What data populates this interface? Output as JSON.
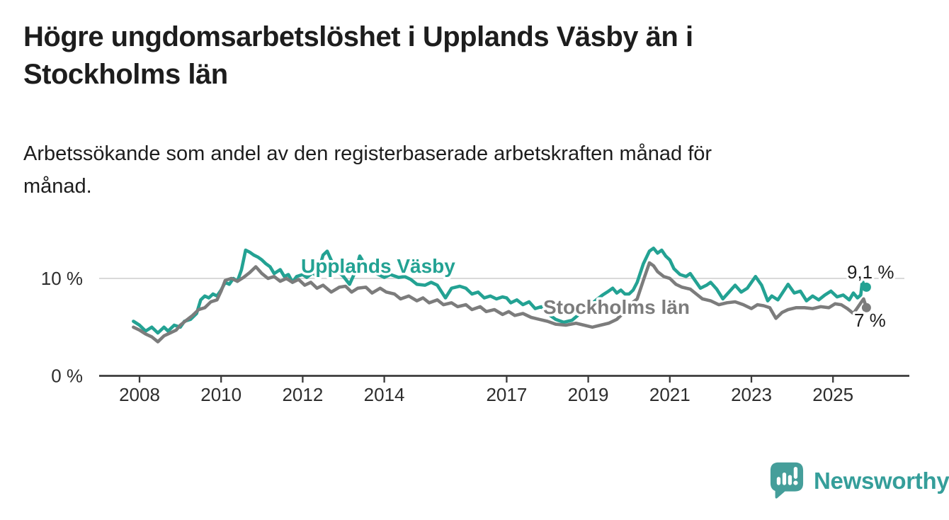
{
  "header": {
    "title_lines": [
      "Högre ungdomsarbetslöshet i Upplands Väsby än i",
      "Stockholms län"
    ],
    "subtitle_lines": [
      "Arbetssökande som andel av den registerbaserade arbetskraften månad för",
      "månad."
    ]
  },
  "branding": {
    "wordmark": "Newsworthy",
    "icon": "speech-bubble-bar-chart-icon",
    "icon_color": "#459e9a",
    "wordmark_color": "#359e9a"
  },
  "colors": {
    "accent_teal": "#23a293",
    "series_gray": "#7c7c7c",
    "axis": "#3b3b3b",
    "tick_label": "#2d2d2d",
    "grid": "#d9d9d9",
    "value_label": "#1d1d1d",
    "title_text": "#1d1d1d"
  },
  "chart_data": {
    "type": "line",
    "title": "Högre ungdomsarbetslöshet i Upplands Väsby än i Stockholms län",
    "subtitle": "Arbetssökande som andel av den registerbaserade arbetskraften månad för månad.",
    "unit": "%",
    "x_unit": "decimal_year",
    "xlim": [
      2007,
      2026.9
    ],
    "ylim": [
      0,
      14.2
    ],
    "grid": "single horizontal gridline at 10 %",
    "y_gridlines": [
      10
    ],
    "x_label_years": [
      2008,
      2010,
      2012,
      2014,
      2017,
      2019,
      2021,
      2023,
      2025
    ],
    "y_ticks": [
      {
        "value": 0,
        "label": "0 %"
      },
      {
        "value": 10,
        "label": "10 %"
      }
    ],
    "legend_position": "labels drawn on lines",
    "series": [
      {
        "id": "upplands-vasby",
        "name": "Upplands Väsby",
        "color": "#23a293",
        "end_value": 9.1,
        "end_label": "9,1 %",
        "points": [
          [
            2007.85,
            5.6
          ],
          [
            2008.0,
            5.2
          ],
          [
            2008.15,
            4.6
          ],
          [
            2008.3,
            5.0
          ],
          [
            2008.45,
            4.4
          ],
          [
            2008.6,
            5.0
          ],
          [
            2008.7,
            4.6
          ],
          [
            2008.85,
            5.2
          ],
          [
            2009.0,
            5.0
          ],
          [
            2009.1,
            5.6
          ],
          [
            2009.25,
            5.8
          ],
          [
            2009.4,
            6.4
          ],
          [
            2009.5,
            7.8
          ],
          [
            2009.6,
            8.2
          ],
          [
            2009.7,
            8.0
          ],
          [
            2009.8,
            8.4
          ],
          [
            2009.9,
            8.2
          ],
          [
            2010.0,
            8.8
          ],
          [
            2010.1,
            9.6
          ],
          [
            2010.2,
            9.4
          ],
          [
            2010.3,
            10.0
          ],
          [
            2010.4,
            9.7
          ],
          [
            2010.5,
            10.9
          ],
          [
            2010.6,
            12.9
          ],
          [
            2010.7,
            12.7
          ],
          [
            2010.8,
            12.4
          ],
          [
            2010.9,
            12.2
          ],
          [
            2011.0,
            11.9
          ],
          [
            2011.1,
            11.5
          ],
          [
            2011.2,
            11.2
          ],
          [
            2011.3,
            10.5
          ],
          [
            2011.45,
            10.9
          ],
          [
            2011.55,
            10.2
          ],
          [
            2011.65,
            10.4
          ],
          [
            2011.75,
            9.6
          ],
          [
            2011.85,
            10.2
          ],
          [
            2012.0,
            10.4
          ],
          [
            2012.1,
            10.1
          ],
          [
            2012.25,
            10.6
          ],
          [
            2012.35,
            10.2
          ],
          [
            2012.5,
            12.4
          ],
          [
            2012.6,
            12.8
          ],
          [
            2012.75,
            11.4
          ],
          [
            2012.9,
            10.6
          ],
          [
            2013.0,
            10.2
          ],
          [
            2013.15,
            9.4
          ],
          [
            2013.3,
            10.8
          ],
          [
            2013.4,
            12.3
          ],
          [
            2013.5,
            11.6
          ],
          [
            2013.65,
            10.8
          ],
          [
            2013.8,
            10.5
          ],
          [
            2014.0,
            10.1
          ],
          [
            2014.15,
            10.4
          ],
          [
            2014.35,
            10.1
          ],
          [
            2014.5,
            10.2
          ],
          [
            2014.65,
            9.9
          ],
          [
            2014.8,
            9.4
          ],
          [
            2015.0,
            9.3
          ],
          [
            2015.15,
            9.6
          ],
          [
            2015.3,
            9.3
          ],
          [
            2015.5,
            8.0
          ],
          [
            2015.65,
            9.0
          ],
          [
            2015.85,
            9.2
          ],
          [
            2016.0,
            9.0
          ],
          [
            2016.15,
            8.4
          ],
          [
            2016.3,
            8.6
          ],
          [
            2016.45,
            8.0
          ],
          [
            2016.6,
            8.2
          ],
          [
            2016.75,
            7.9
          ],
          [
            2016.9,
            8.1
          ],
          [
            2017.0,
            8.0
          ],
          [
            2017.1,
            7.5
          ],
          [
            2017.25,
            7.8
          ],
          [
            2017.4,
            7.3
          ],
          [
            2017.55,
            7.6
          ],
          [
            2017.7,
            6.9
          ],
          [
            2017.85,
            7.1
          ],
          [
            2018.0,
            6.4
          ],
          [
            2018.2,
            5.8
          ],
          [
            2018.4,
            5.5
          ],
          [
            2018.6,
            5.7
          ],
          [
            2018.8,
            6.4
          ],
          [
            2019.0,
            7.1
          ],
          [
            2019.2,
            7.8
          ],
          [
            2019.35,
            8.3
          ],
          [
            2019.5,
            8.7
          ],
          [
            2019.6,
            9.0
          ],
          [
            2019.7,
            8.5
          ],
          [
            2019.8,
            8.8
          ],
          [
            2019.9,
            8.4
          ],
          [
            2020.0,
            8.4
          ],
          [
            2020.1,
            8.8
          ],
          [
            2020.2,
            9.6
          ],
          [
            2020.35,
            11.5
          ],
          [
            2020.5,
            12.8
          ],
          [
            2020.6,
            13.1
          ],
          [
            2020.7,
            12.6
          ],
          [
            2020.8,
            12.9
          ],
          [
            2020.9,
            12.3
          ],
          [
            2021.0,
            11.9
          ],
          [
            2021.1,
            11.0
          ],
          [
            2021.25,
            10.4
          ],
          [
            2021.4,
            10.2
          ],
          [
            2021.5,
            10.5
          ],
          [
            2021.6,
            9.9
          ],
          [
            2021.75,
            9.0
          ],
          [
            2021.9,
            9.3
          ],
          [
            2022.0,
            9.6
          ],
          [
            2022.15,
            8.9
          ],
          [
            2022.3,
            7.9
          ],
          [
            2022.45,
            8.6
          ],
          [
            2022.6,
            9.3
          ],
          [
            2022.75,
            8.6
          ],
          [
            2022.9,
            9.0
          ],
          [
            2023.1,
            10.2
          ],
          [
            2023.25,
            9.3
          ],
          [
            2023.4,
            7.7
          ],
          [
            2023.5,
            8.2
          ],
          [
            2023.65,
            7.8
          ],
          [
            2023.9,
            9.4
          ],
          [
            2024.05,
            8.5
          ],
          [
            2024.2,
            8.7
          ],
          [
            2024.35,
            7.7
          ],
          [
            2024.5,
            8.2
          ],
          [
            2024.65,
            7.8
          ],
          [
            2024.8,
            8.3
          ],
          [
            2024.95,
            8.7
          ],
          [
            2025.1,
            8.1
          ],
          [
            2025.25,
            8.3
          ],
          [
            2025.4,
            7.8
          ],
          [
            2025.5,
            8.5
          ],
          [
            2025.6,
            8.0
          ],
          [
            2025.68,
            8.3
          ],
          [
            2025.72,
            9.8
          ],
          [
            2025.78,
            8.9
          ],
          [
            2025.82,
            9.1
          ]
        ]
      },
      {
        "id": "stockholms-lan",
        "name": "Stockholms län",
        "color": "#7c7c7c",
        "end_value": 7.0,
        "end_label": "7 %",
        "points": [
          [
            2007.85,
            5.0
          ],
          [
            2008.0,
            4.7
          ],
          [
            2008.15,
            4.3
          ],
          [
            2008.3,
            4.0
          ],
          [
            2008.45,
            3.5
          ],
          [
            2008.6,
            4.1
          ],
          [
            2008.75,
            4.4
          ],
          [
            2008.9,
            4.7
          ],
          [
            2009.0,
            5.2
          ],
          [
            2009.15,
            5.7
          ],
          [
            2009.3,
            6.2
          ],
          [
            2009.45,
            6.8
          ],
          [
            2009.6,
            7.0
          ],
          [
            2009.75,
            7.6
          ],
          [
            2009.9,
            7.8
          ],
          [
            2010.0,
            8.7
          ],
          [
            2010.1,
            9.8
          ],
          [
            2010.25,
            10.0
          ],
          [
            2010.4,
            9.7
          ],
          [
            2010.55,
            10.1
          ],
          [
            2010.7,
            10.6
          ],
          [
            2010.85,
            11.2
          ],
          [
            2011.0,
            10.5
          ],
          [
            2011.15,
            10.0
          ],
          [
            2011.3,
            10.2
          ],
          [
            2011.45,
            9.7
          ],
          [
            2011.6,
            10.0
          ],
          [
            2011.75,
            9.6
          ],
          [
            2011.9,
            9.9
          ],
          [
            2012.05,
            9.3
          ],
          [
            2012.2,
            9.6
          ],
          [
            2012.35,
            9.0
          ],
          [
            2012.5,
            9.3
          ],
          [
            2012.7,
            8.6
          ],
          [
            2012.9,
            9.1
          ],
          [
            2013.05,
            9.2
          ],
          [
            2013.2,
            8.6
          ],
          [
            2013.35,
            9.0
          ],
          [
            2013.55,
            9.1
          ],
          [
            2013.7,
            8.5
          ],
          [
            2013.9,
            9.0
          ],
          [
            2014.05,
            8.6
          ],
          [
            2014.25,
            8.4
          ],
          [
            2014.4,
            7.9
          ],
          [
            2014.6,
            8.2
          ],
          [
            2014.8,
            7.7
          ],
          [
            2014.95,
            8.0
          ],
          [
            2015.1,
            7.5
          ],
          [
            2015.3,
            7.8
          ],
          [
            2015.45,
            7.3
          ],
          [
            2015.65,
            7.5
          ],
          [
            2015.8,
            7.1
          ],
          [
            2016.0,
            7.3
          ],
          [
            2016.15,
            6.8
          ],
          [
            2016.35,
            7.1
          ],
          [
            2016.5,
            6.6
          ],
          [
            2016.7,
            6.8
          ],
          [
            2016.9,
            6.3
          ],
          [
            2017.05,
            6.6
          ],
          [
            2017.2,
            6.2
          ],
          [
            2017.4,
            6.4
          ],
          [
            2017.6,
            6.0
          ],
          [
            2017.8,
            5.8
          ],
          [
            2018.0,
            5.6
          ],
          [
            2018.2,
            5.3
          ],
          [
            2018.45,
            5.2
          ],
          [
            2018.7,
            5.4
          ],
          [
            2018.9,
            5.2
          ],
          [
            2019.1,
            5.0
          ],
          [
            2019.3,
            5.2
          ],
          [
            2019.5,
            5.4
          ],
          [
            2019.7,
            5.8
          ],
          [
            2019.9,
            6.6
          ],
          [
            2020.05,
            7.4
          ],
          [
            2020.2,
            7.9
          ],
          [
            2020.35,
            9.8
          ],
          [
            2020.5,
            11.6
          ],
          [
            2020.6,
            11.3
          ],
          [
            2020.7,
            10.7
          ],
          [
            2020.85,
            10.2
          ],
          [
            2021.0,
            10.0
          ],
          [
            2021.15,
            9.4
          ],
          [
            2021.3,
            9.1
          ],
          [
            2021.5,
            8.9
          ],
          [
            2021.65,
            8.4
          ],
          [
            2021.8,
            7.9
          ],
          [
            2022.0,
            7.7
          ],
          [
            2022.2,
            7.3
          ],
          [
            2022.4,
            7.5
          ],
          [
            2022.6,
            7.6
          ],
          [
            2022.8,
            7.3
          ],
          [
            2023.0,
            6.9
          ],
          [
            2023.15,
            7.3
          ],
          [
            2023.3,
            7.2
          ],
          [
            2023.45,
            7.0
          ],
          [
            2023.6,
            5.9
          ],
          [
            2023.75,
            6.5
          ],
          [
            2023.9,
            6.8
          ],
          [
            2024.1,
            7.0
          ],
          [
            2024.3,
            7.0
          ],
          [
            2024.5,
            6.9
          ],
          [
            2024.7,
            7.1
          ],
          [
            2024.9,
            7.0
          ],
          [
            2025.05,
            7.4
          ],
          [
            2025.2,
            7.3
          ],
          [
            2025.35,
            6.9
          ],
          [
            2025.5,
            6.4
          ],
          [
            2025.6,
            7.0
          ],
          [
            2025.7,
            7.6
          ],
          [
            2025.75,
            7.9
          ],
          [
            2025.82,
            7.0
          ]
        ]
      }
    ]
  }
}
